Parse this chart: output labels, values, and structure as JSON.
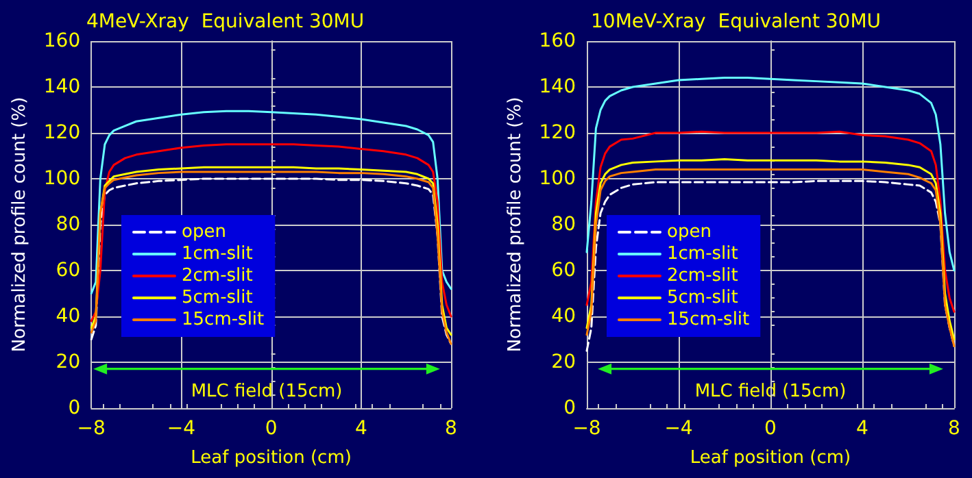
{
  "chart_data": [
    {
      "type": "line",
      "title": "4MeV-Xray  Equivalent 30MU",
      "xlabel": "Leaf position (cm)",
      "ylabel": "Normalized profile count (%)",
      "x": [
        -8,
        -7.8,
        -7.6,
        -7.4,
        -7.2,
        -7,
        -6.5,
        -6,
        -5,
        -4,
        -3,
        -2,
        -1,
        0,
        1,
        2,
        3,
        4,
        5,
        6,
        6.5,
        7,
        7.2,
        7.4,
        7.6,
        7.8,
        8
      ],
      "series": [
        {
          "name": "open",
          "color": "#ffffff",
          "line_style": "dashed",
          "values": [
            30,
            36,
            80,
            93,
            95,
            96,
            97,
            98,
            99,
            99.5,
            100,
            100,
            100,
            100,
            100,
            100,
            99.5,
            99.5,
            99,
            98,
            97,
            95.5,
            93,
            75,
            40,
            32,
            28
          ]
        },
        {
          "name": "1cm-slit",
          "color": "#66ffff",
          "values": [
            50,
            55,
            100,
            115,
            119,
            121,
            123,
            125,
            126.5,
            128,
            129,
            129.5,
            129.5,
            129,
            128.5,
            128,
            127,
            126,
            124.5,
            123,
            121.5,
            119,
            116,
            100,
            60,
            55,
            52
          ]
        },
        {
          "name": "2cm-slit",
          "color": "#ff0000",
          "values": [
            38,
            42,
            60,
            95,
            103,
            106,
            109,
            110.5,
            112,
            113.5,
            114.5,
            115,
            115,
            115,
            115,
            114.5,
            114,
            113,
            112,
            110.5,
            109,
            106,
            103,
            90,
            55,
            45,
            40
          ]
        },
        {
          "name": "5cm-slit",
          "color": "#ffff00",
          "values": [
            35,
            40,
            85,
            97,
            99,
            101,
            102,
            103,
            104,
            104.5,
            105,
            105,
            105,
            105,
            105,
            104.5,
            104.5,
            104,
            103.5,
            103,
            102,
            100,
            98,
            80,
            45,
            35,
            32
          ]
        },
        {
          "name": "15cm-slit",
          "color": "#ff8000",
          "values": [
            33,
            38,
            85,
            96,
            98,
            99.5,
            100.5,
            101.5,
            102.5,
            103,
            103,
            103,
            103,
            103,
            103,
            103,
            102.5,
            102.5,
            102,
            101,
            100,
            98.5,
            96,
            75,
            42,
            33,
            28
          ]
        }
      ],
      "xlim": [
        -8,
        8
      ],
      "xticks": [
        -8,
        -4,
        0,
        4,
        8
      ],
      "ylim": [
        0,
        160
      ],
      "yticks": [
        0,
        20,
        40,
        60,
        80,
        100,
        120,
        140,
        160
      ],
      "grid": true,
      "legend": "left",
      "annotations": [
        "MLC field (15cm)"
      ]
    },
    {
      "type": "line",
      "title": "10MeV-Xray  Equivalent 30MU",
      "xlabel": "Leaf position (cm)",
      "ylabel": "Normalized profile count (%)",
      "x": [
        -8,
        -7.8,
        -7.6,
        -7.4,
        -7.2,
        -7,
        -6.5,
        -6,
        -5,
        -4,
        -3,
        -2,
        -1,
        0,
        1,
        2,
        3,
        4,
        5,
        6,
        6.5,
        7,
        7.2,
        7.4,
        7.6,
        7.8,
        8
      ],
      "series": [
        {
          "name": "open",
          "color": "#ffffff",
          "line_style": "dashed",
          "values": [
            25,
            35,
            70,
            85,
            90,
            93,
            96,
            97.5,
            98.5,
            98.5,
            98.5,
            98.5,
            98.5,
            98.5,
            98.5,
            99,
            99,
            99,
            98.5,
            97.5,
            97,
            94,
            90,
            80,
            45,
            35,
            27
          ]
        },
        {
          "name": "1cm-slit",
          "color": "#66ffff",
          "values": [
            68,
            90,
            122,
            130,
            134,
            136,
            138.5,
            140,
            141.5,
            143,
            143.5,
            144,
            144,
            143.5,
            143,
            142.5,
            142,
            141.5,
            140,
            138.5,
            137,
            133,
            128,
            115,
            85,
            68,
            60
          ]
        },
        {
          "name": "2cm-slit",
          "color": "#ff0000",
          "values": [
            45,
            55,
            90,
            105,
            111,
            114,
            117,
            117.5,
            120,
            120,
            120.5,
            120,
            120,
            120,
            120,
            120,
            120.5,
            119,
            118.5,
            117,
            115.5,
            112,
            106,
            90,
            60,
            48,
            42
          ]
        },
        {
          "name": "5cm-slit",
          "color": "#ffff00",
          "values": [
            35,
            45,
            85,
            98,
            102,
            104,
            106,
            107,
            107.5,
            108,
            108,
            108.5,
            108,
            108,
            108,
            108,
            107.5,
            107.5,
            107,
            106,
            105,
            102,
            98,
            85,
            50,
            38,
            30
          ]
        },
        {
          "name": "15cm-slit",
          "color": "#ff8000",
          "values": [
            32,
            42,
            80,
            95,
            99,
            101,
            102.5,
            103,
            104,
            104,
            104,
            104,
            104,
            104,
            104,
            104,
            104,
            104,
            103,
            102,
            100.5,
            98,
            95,
            80,
            45,
            35,
            27
          ]
        }
      ],
      "xlim": [
        -8,
        8
      ],
      "xticks": [
        -8,
        -4,
        0,
        4,
        8
      ],
      "ylim": [
        0,
        160
      ],
      "yticks": [
        0,
        20,
        40,
        60,
        80,
        100,
        120,
        140,
        160
      ],
      "grid": true,
      "legend": "left",
      "annotations": [
        "MLC field (15cm)"
      ]
    }
  ]
}
